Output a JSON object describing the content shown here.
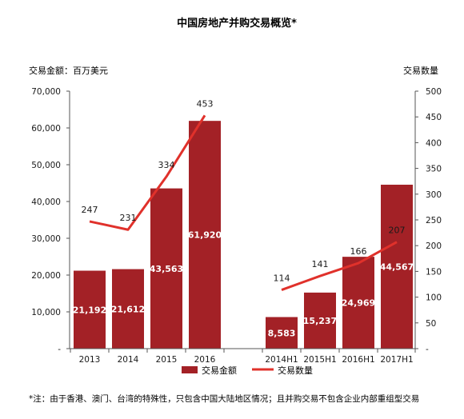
{
  "chart_data": {
    "type": "bar",
    "title": "中国房地产并购交易概览*",
    "ylabel_left": "交易金额：百万美元",
    "ylabel_right": "交易数量",
    "categories": [
      "2013",
      "2014",
      "2015",
      "2016",
      "2014H1",
      "2015H1",
      "2016H1",
      "2017H1"
    ],
    "groups": [
      [
        "2013",
        "2014",
        "2015",
        "2016"
      ],
      [
        "2014H1",
        "2015H1",
        "2016H1",
        "2017H1"
      ]
    ],
    "ylim_left": [
      0,
      70000
    ],
    "ylim_right": [
      0,
      500
    ],
    "yticks_left": [
      "-",
      "10,000",
      "20,000",
      "30,000",
      "40,000",
      "50,000",
      "60,000",
      "70,000"
    ],
    "yticks_right": [
      "-",
      "50",
      "100",
      "150",
      "200",
      "250",
      "300",
      "350",
      "400",
      "450",
      "500"
    ],
    "series": [
      {
        "name": "交易金额",
        "kind": "bar",
        "axis": "left",
        "values": [
          21192,
          21612,
          43563,
          61920,
          8583,
          15237,
          24969,
          44567
        ],
        "labels": [
          "21,192",
          "21,612",
          "43,563",
          "61,920",
          "8,583",
          "15,237",
          "24,969",
          "44,567"
        ],
        "color": "#a32126"
      },
      {
        "name": "交易数量",
        "kind": "line",
        "axis": "right",
        "values": [
          247,
          231,
          334,
          453,
          114,
          141,
          166,
          207
        ],
        "labels": [
          "247",
          "231",
          "334",
          "453",
          "114",
          "141",
          "166",
          "207"
        ],
        "color": "#e0312b"
      }
    ],
    "legend_position": "bottom",
    "grid": false
  },
  "footnote": "*注：由于香港、澳门、台湾的特殊性，只包含中国大陆地区情况；且并购交易不包含企业内部重组型交易"
}
